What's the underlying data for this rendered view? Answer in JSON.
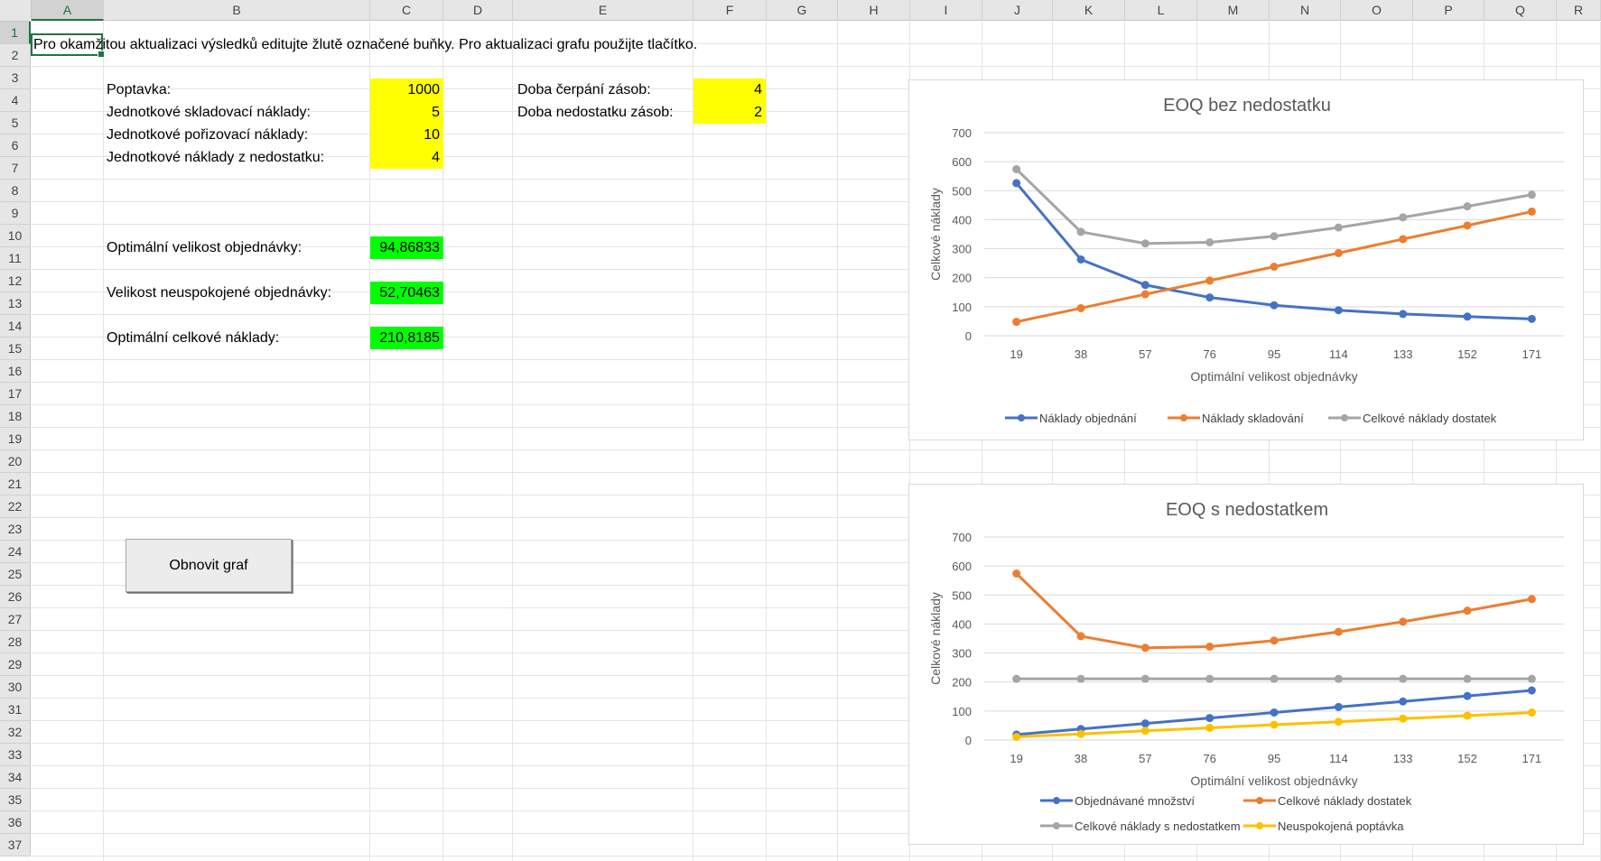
{
  "spreadsheet": {
    "columns": [
      "A",
      "B",
      "C",
      "D",
      "E",
      "F",
      "G",
      "H",
      "I",
      "J",
      "K",
      "L",
      "M",
      "N",
      "O",
      "P",
      "Q",
      "R"
    ],
    "rows": [
      "1",
      "2",
      "3",
      "4",
      "5",
      "6",
      "7",
      "8",
      "9",
      "10",
      "11",
      "12",
      "13",
      "14",
      "15",
      "16",
      "17",
      "18",
      "19",
      "20",
      "21",
      "22",
      "23",
      "24",
      "25",
      "26",
      "27",
      "28",
      "29",
      "30",
      "31",
      "32",
      "33",
      "34",
      "35",
      "36",
      "37"
    ],
    "selected_cell": "A1"
  },
  "instruction": "Pro okamžitou aktualizaci výsledků editujte žlutě označené buňky. Pro aktualizaci grafu použijte tlačítko.",
  "inputs": {
    "demand_label": "Poptavka:",
    "demand_value": "1000",
    "holding_label": "Jednotkové skladovací náklady:",
    "holding_value": "5",
    "ordering_label": "Jednotkové pořizovací náklady:",
    "ordering_value": "10",
    "shortage_label": "Jednotkové náklady z nedostatku:",
    "shortage_value": "4",
    "depletion_label": "Doba čerpání zásob:",
    "depletion_value": "4",
    "shortage_time_label": "Doba nedostatku zásob:",
    "shortage_time_value": "2"
  },
  "results": {
    "optimal_order_label": "Optimální velikost objednávky:",
    "optimal_order_value": "94,86833",
    "unmet_order_label": "Velikost neuspokojené objednávky:",
    "unmet_order_value": "52,70463",
    "optimal_cost_label": "Optimální celkové náklady:",
    "optimal_cost_value": "210,8185"
  },
  "button": {
    "label": "Obnovit graf"
  },
  "chart_data": [
    {
      "type": "line",
      "title": "EOQ bez nedostatku",
      "xlabel": "Optimální velikost objednávky",
      "ylabel": "Celkové náklady",
      "x": [
        "19",
        "38",
        "57",
        "76",
        "95",
        "114",
        "133",
        "152",
        "171"
      ],
      "ylim": [
        0,
        700
      ],
      "yticks": [
        "0",
        "100",
        "200",
        "300",
        "400",
        "500",
        "600",
        "700"
      ],
      "grid": true,
      "legend": "bottom",
      "series": [
        {
          "name": "Náklady objednání",
          "color": "#4472c4",
          "values": [
            526,
            263,
            175,
            132,
            105,
            88,
            75,
            66,
            58
          ]
        },
        {
          "name": "Náklady skladování",
          "color": "#ed7d31",
          "values": [
            48,
            95,
            143,
            190,
            238,
            285,
            333,
            380,
            428
          ]
        },
        {
          "name": "Celkové náklady dostatek",
          "color": "#a5a5a5",
          "values": [
            574,
            358,
            318,
            322,
            343,
            373,
            408,
            446,
            486
          ]
        }
      ]
    },
    {
      "type": "line",
      "title": "EOQ s nedostatkem",
      "xlabel": "Optimální velikost objednávky",
      "ylabel": "Celkové náklady",
      "x": [
        "19",
        "38",
        "57",
        "76",
        "95",
        "114",
        "133",
        "152",
        "171"
      ],
      "ylim": [
        0,
        700
      ],
      "yticks": [
        "0",
        "100",
        "200",
        "300",
        "400",
        "500",
        "600",
        "700"
      ],
      "grid": true,
      "legend": "bottom",
      "series": [
        {
          "name": "Objednávané množství",
          "color": "#4472c4",
          "values": [
            19,
            38,
            57,
            76,
            95,
            114,
            133,
            152,
            171
          ]
        },
        {
          "name": "Celkové náklady dostatek",
          "color": "#ed7d31",
          "values": [
            574,
            358,
            318,
            322,
            343,
            373,
            408,
            446,
            486
          ]
        },
        {
          "name": "Celkové náklady s nedostatkem",
          "color": "#a5a5a5",
          "values": [
            211,
            211,
            211,
            211,
            211,
            211,
            211,
            211,
            211
          ]
        },
        {
          "name": "Neuspokojená poptávka",
          "color": "#ffc000",
          "values": [
            11,
            21,
            32,
            42,
            53,
            63,
            74,
            84,
            95
          ]
        }
      ]
    }
  ]
}
